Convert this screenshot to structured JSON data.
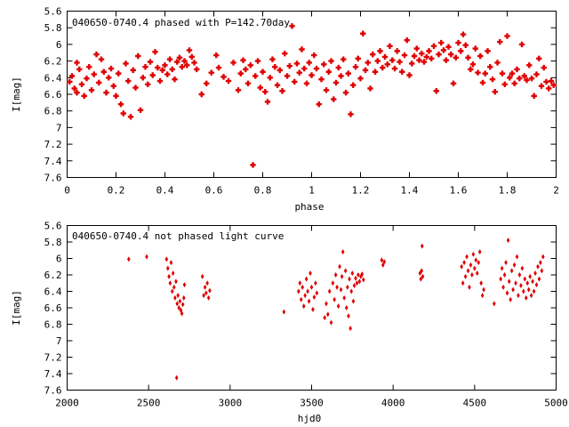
{
  "chart_data": [
    {
      "type": "scatter",
      "title": "040650-0740.4 phased with P=142.70day",
      "xlabel": "phase",
      "ylabel": "I[mag]",
      "xlim": [
        0,
        2
      ],
      "ylim": [
        5.6,
        7.6
      ],
      "y_inverted": true,
      "x_ticks": [
        "0",
        "0.2",
        "0.4",
        "0.6",
        "0.8",
        "1",
        "1.2",
        "1.4",
        "1.6",
        "1.8",
        "2"
      ],
      "y_ticks": [
        "5.6",
        "5.8",
        "6",
        "6.2",
        "6.4",
        "6.6",
        "6.8",
        "7",
        "7.2",
        "7.4",
        "7.6"
      ],
      "marker_color": "#e00000",
      "points": [
        [
          0.01,
          6.45
        ],
        [
          0.02,
          6.38
        ],
        [
          0.03,
          6.53
        ],
        [
          0.04,
          6.22
        ],
        [
          0.04,
          6.58
        ],
        [
          0.05,
          6.3
        ],
        [
          0.06,
          6.48
        ],
        [
          0.07,
          6.62
        ],
        [
          0.08,
          6.41
        ],
        [
          0.09,
          6.27
        ],
        [
          0.1,
          6.55
        ],
        [
          0.11,
          6.36
        ],
        [
          0.12,
          6.12
        ],
        [
          0.13,
          6.46
        ],
        [
          0.14,
          6.18
        ],
        [
          0.15,
          6.33
        ],
        [
          0.16,
          6.58
        ],
        [
          0.17,
          6.4
        ],
        [
          0.18,
          6.29
        ],
        [
          0.19,
          6.5
        ],
        [
          0.2,
          6.62
        ],
        [
          0.21,
          6.35
        ],
        [
          0.22,
          6.72
        ],
        [
          0.23,
          6.83
        ],
        [
          0.24,
          6.23
        ],
        [
          0.25,
          6.44
        ],
        [
          0.26,
          6.87
        ],
        [
          0.27,
          6.31
        ],
        [
          0.28,
          6.52
        ],
        [
          0.29,
          6.14
        ],
        [
          0.3,
          6.79
        ],
        [
          0.31,
          6.4
        ],
        [
          0.32,
          6.27
        ],
        [
          0.33,
          6.48
        ],
        [
          0.34,
          6.21
        ],
        [
          0.35,
          6.37
        ],
        [
          0.36,
          6.09
        ],
        [
          0.37,
          6.28
        ],
        [
          0.38,
          6.44
        ],
        [
          0.39,
          6.31
        ],
        [
          0.4,
          6.25
        ],
        [
          0.41,
          6.36
        ],
        [
          0.42,
          6.18
        ],
        [
          0.43,
          6.3
        ],
        [
          0.44,
          6.42
        ],
        [
          0.45,
          6.21
        ],
        [
          0.46,
          6.16
        ],
        [
          0.47,
          6.27
        ],
        [
          0.48,
          6.2
        ],
        [
          0.49,
          6.25
        ],
        [
          0.5,
          6.07
        ],
        [
          0.51,
          6.15
        ],
        [
          0.52,
          6.22
        ],
        [
          0.53,
          6.3
        ],
        [
          0.55,
          6.6
        ],
        [
          0.57,
          6.47
        ],
        [
          0.59,
          6.34
        ],
        [
          0.61,
          6.13
        ],
        [
          0.62,
          6.28
        ],
        [
          0.64,
          6.39
        ],
        [
          0.66,
          6.44
        ],
        [
          0.68,
          6.22
        ],
        [
          0.7,
          6.55
        ],
        [
          0.71,
          6.35
        ],
        [
          0.72,
          6.19
        ],
        [
          0.73,
          6.3
        ],
        [
          0.74,
          6.47
        ],
        [
          0.75,
          6.25
        ],
        [
          0.76,
          7.45
        ],
        [
          0.77,
          6.38
        ],
        [
          0.78,
          6.2
        ],
        [
          0.79,
          6.52
        ],
        [
          0.8,
          6.33
        ],
        [
          0.81,
          6.57
        ],
        [
          0.82,
          6.69
        ],
        [
          0.83,
          6.4
        ],
        [
          0.84,
          6.18
        ],
        [
          0.85,
          6.27
        ],
        [
          0.86,
          6.49
        ],
        [
          0.87,
          6.31
        ],
        [
          0.88,
          6.56
        ],
        [
          0.89,
          6.11
        ],
        [
          0.9,
          6.38
        ],
        [
          0.91,
          6.26
        ],
        [
          0.92,
          5.78
        ],
        [
          0.93,
          6.45
        ],
        [
          0.94,
          6.23
        ],
        [
          0.95,
          6.34
        ],
        [
          0.96,
          6.06
        ],
        [
          0.97,
          6.29
        ],
        [
          0.98,
          6.47
        ],
        [
          0.99,
          6.22
        ],
        [
          1.0,
          6.37
        ],
        [
          1.01,
          6.13
        ],
        [
          1.02,
          6.29
        ],
        [
          1.03,
          6.72
        ],
        [
          1.04,
          6.42
        ],
        [
          1.05,
          6.24
        ],
        [
          1.06,
          6.55
        ],
        [
          1.07,
          6.33
        ],
        [
          1.08,
          6.2
        ],
        [
          1.09,
          6.66
        ],
        [
          1.1,
          6.46
        ],
        [
          1.11,
          6.28
        ],
        [
          1.12,
          6.38
        ],
        [
          1.13,
          6.18
        ],
        [
          1.14,
          6.58
        ],
        [
          1.15,
          6.35
        ],
        [
          1.16,
          6.84
        ],
        [
          1.17,
          6.49
        ],
        [
          1.18,
          6.27
        ],
        [
          1.19,
          6.17
        ],
        [
          1.2,
          6.41
        ],
        [
          1.21,
          5.87
        ],
        [
          1.22,
          6.31
        ],
        [
          1.23,
          6.22
        ],
        [
          1.24,
          6.53
        ],
        [
          1.25,
          6.12
        ],
        [
          1.26,
          6.33
        ],
        [
          1.27,
          6.2
        ],
        [
          1.28,
          6.08
        ],
        [
          1.29,
          6.28
        ],
        [
          1.3,
          6.15
        ],
        [
          1.31,
          6.24
        ],
        [
          1.32,
          6.02
        ],
        [
          1.33,
          6.19
        ],
        [
          1.34,
          6.29
        ],
        [
          1.35,
          6.08
        ],
        [
          1.36,
          6.21
        ],
        [
          1.37,
          6.33
        ],
        [
          1.38,
          6.13
        ],
        [
          1.39,
          5.95
        ],
        [
          1.4,
          6.37
        ],
        [
          1.41,
          6.23
        ],
        [
          1.42,
          6.14
        ],
        [
          1.43,
          6.05
        ],
        [
          1.44,
          6.19
        ],
        [
          1.45,
          6.11
        ],
        [
          1.46,
          6.21
        ],
        [
          1.47,
          6.15
        ],
        [
          1.48,
          6.08
        ],
        [
          1.49,
          6.17
        ],
        [
          1.5,
          6.02
        ],
        [
          1.51,
          6.56
        ],
        [
          1.52,
          6.12
        ],
        [
          1.53,
          5.98
        ],
        [
          1.54,
          6.07
        ],
        [
          1.55,
          6.19
        ],
        [
          1.56,
          6.03
        ],
        [
          1.57,
          6.12
        ],
        [
          1.58,
          6.47
        ],
        [
          1.59,
          6.16
        ],
        [
          1.6,
          5.98
        ],
        [
          1.61,
          6.08
        ],
        [
          1.62,
          5.88
        ],
        [
          1.63,
          6.01
        ],
        [
          1.64,
          6.16
        ],
        [
          1.65,
          6.3
        ],
        [
          1.66,
          6.24
        ],
        [
          1.67,
          6.05
        ],
        [
          1.68,
          6.34
        ],
        [
          1.69,
          6.14
        ],
        [
          1.7,
          6.46
        ],
        [
          1.71,
          6.35
        ],
        [
          1.72,
          6.08
        ],
        [
          1.73,
          6.27
        ],
        [
          1.74,
          6.42
        ],
        [
          1.75,
          6.57
        ],
        [
          1.76,
          6.22
        ],
        [
          1.77,
          5.97
        ],
        [
          1.78,
          6.35
        ],
        [
          1.79,
          6.48
        ],
        [
          1.8,
          5.9
        ],
        [
          1.81,
          6.4
        ],
        [
          1.82,
          6.35
        ],
        [
          1.83,
          6.47
        ],
        [
          1.84,
          6.3
        ],
        [
          1.85,
          6.41
        ],
        [
          1.86,
          6.0
        ],
        [
          1.87,
          6.38
        ],
        [
          1.88,
          6.43
        ],
        [
          1.89,
          6.25
        ],
        [
          1.9,
          6.41
        ],
        [
          1.91,
          6.62
        ],
        [
          1.92,
          6.36
        ],
        [
          1.93,
          6.17
        ],
        [
          1.94,
          6.5
        ],
        [
          1.95,
          6.28
        ],
        [
          1.96,
          6.45
        ],
        [
          1.97,
          6.53
        ],
        [
          1.98,
          6.44
        ],
        [
          1.99,
          6.49
        ]
      ]
    },
    {
      "type": "scatter",
      "title": "040650-0740.4 not phased light curve",
      "xlabel": "hjd0",
      "ylabel": "I[mag]",
      "xlim": [
        2000,
        5000
      ],
      "ylim": [
        5.6,
        7.6
      ],
      "y_inverted": true,
      "x_ticks": [
        "2000",
        "2500",
        "3000",
        "3500",
        "4000",
        "4500",
        "5000"
      ],
      "y_ticks": [
        "5.6",
        "5.8",
        "6",
        "6.2",
        "6.4",
        "6.6",
        "6.8",
        "7",
        "7.2",
        "7.4",
        "7.6"
      ],
      "marker_color": "#e00000",
      "points": [
        [
          2378,
          6.01
        ],
        [
          2488,
          5.98
        ],
        [
          2610,
          6.01
        ],
        [
          2618,
          6.12
        ],
        [
          2625,
          6.22
        ],
        [
          2632,
          6.3
        ],
        [
          2638,
          6.05
        ],
        [
          2645,
          6.4
        ],
        [
          2650,
          6.18
        ],
        [
          2656,
          6.35
        ],
        [
          2662,
          6.48
        ],
        [
          2668,
          6.28
        ],
        [
          2672,
          7.45
        ],
        [
          2675,
          6.55
        ],
        [
          2680,
          6.45
        ],
        [
          2686,
          6.6
        ],
        [
          2692,
          6.52
        ],
        [
          2698,
          6.63
        ],
        [
          2704,
          6.67
        ],
        [
          2710,
          6.56
        ],
        [
          2716,
          6.48
        ],
        [
          2720,
          6.32
        ],
        [
          2830,
          6.22
        ],
        [
          2838,
          6.45
        ],
        [
          2846,
          6.35
        ],
        [
          2853,
          6.42
        ],
        [
          2860,
          6.3
        ],
        [
          2868,
          6.48
        ],
        [
          2875,
          6.39
        ],
        [
          3330,
          6.65
        ],
        [
          3420,
          6.4
        ],
        [
          3428,
          6.3
        ],
        [
          3436,
          6.5
        ],
        [
          3444,
          6.35
        ],
        [
          3452,
          6.58
        ],
        [
          3460,
          6.45
        ],
        [
          3468,
          6.25
        ],
        [
          3476,
          6.4
        ],
        [
          3484,
          6.52
        ],
        [
          3492,
          6.18
        ],
        [
          3500,
          6.35
        ],
        [
          3508,
          6.62
        ],
        [
          3516,
          6.47
        ],
        [
          3524,
          6.3
        ],
        [
          3532,
          6.42
        ],
        [
          3580,
          6.72
        ],
        [
          3590,
          6.55
        ],
        [
          3600,
          6.68
        ],
        [
          3610,
          6.4
        ],
        [
          3620,
          6.78
        ],
        [
          3630,
          6.3
        ],
        [
          3640,
          6.5
        ],
        [
          3648,
          6.2
        ],
        [
          3656,
          6.35
        ],
        [
          3664,
          6.58
        ],
        [
          3672,
          6.1
        ],
        [
          3680,
          6.38
        ],
        [
          3686,
          6.22
        ],
        [
          3692,
          5.92
        ],
        [
          3700,
          6.48
        ],
        [
          3708,
          6.15
        ],
        [
          3714,
          6.6
        ],
        [
          3720,
          6.35
        ],
        [
          3726,
          6.7
        ],
        [
          3732,
          6.25
        ],
        [
          3738,
          6.85
        ],
        [
          3744,
          6.4
        ],
        [
          3750,
          6.18
        ],
        [
          3756,
          6.52
        ],
        [
          3762,
          6.33
        ],
        [
          3770,
          6.24
        ],
        [
          3778,
          6.3
        ],
        [
          3786,
          6.2
        ],
        [
          3794,
          6.28
        ],
        [
          3802,
          6.22
        ],
        [
          3810,
          6.19
        ],
        [
          3818,
          6.26
        ],
        [
          3930,
          6.02
        ],
        [
          3938,
          6.08
        ],
        [
          3946,
          6.04
        ],
        [
          4165,
          6.18
        ],
        [
          4170,
          6.25
        ],
        [
          4175,
          6.15
        ],
        [
          4178,
          5.85
        ],
        [
          4182,
          6.22
        ],
        [
          4420,
          6.1
        ],
        [
          4428,
          6.3
        ],
        [
          4436,
          6.05
        ],
        [
          4444,
          6.22
        ],
        [
          4452,
          5.98
        ],
        [
          4460,
          6.15
        ],
        [
          4468,
          6.35
        ],
        [
          4476,
          6.08
        ],
        [
          4484,
          6.2
        ],
        [
          4492,
          5.95
        ],
        [
          4500,
          6.12
        ],
        [
          4508,
          6.02
        ],
        [
          4516,
          6.18
        ],
        [
          4524,
          6.05
        ],
        [
          4532,
          5.92
        ],
        [
          4540,
          6.3
        ],
        [
          4548,
          6.45
        ],
        [
          4556,
          6.38
        ],
        [
          4620,
          6.55
        ],
        [
          4660,
          6.25
        ],
        [
          4668,
          6.12
        ],
        [
          4676,
          6.35
        ],
        [
          4684,
          6.2
        ],
        [
          4692,
          6.05
        ],
        [
          4700,
          6.42
        ],
        [
          4706,
          5.78
        ],
        [
          4712,
          6.28
        ],
        [
          4720,
          6.5
        ],
        [
          4728,
          6.15
        ],
        [
          4736,
          6.38
        ],
        [
          4744,
          6.08
        ],
        [
          4752,
          6.3
        ],
        [
          4760,
          5.98
        ],
        [
          4768,
          6.45
        ],
        [
          4776,
          6.2
        ],
        [
          4784,
          6.33
        ],
        [
          4792,
          6.12
        ],
        [
          4800,
          6.4
        ],
        [
          4808,
          6.25
        ],
        [
          4816,
          6.48
        ],
        [
          4824,
          6.3
        ],
        [
          4832,
          6.38
        ],
        [
          4840,
          6.22
        ],
        [
          4848,
          6.45
        ],
        [
          4856,
          6.28
        ],
        [
          4864,
          6.4
        ],
        [
          4872,
          6.18
        ],
        [
          4880,
          6.32
        ],
        [
          4888,
          6.1
        ],
        [
          4896,
          6.25
        ],
        [
          4904,
          6.05
        ],
        [
          4912,
          6.15
        ],
        [
          4920,
          5.98
        ]
      ]
    }
  ]
}
